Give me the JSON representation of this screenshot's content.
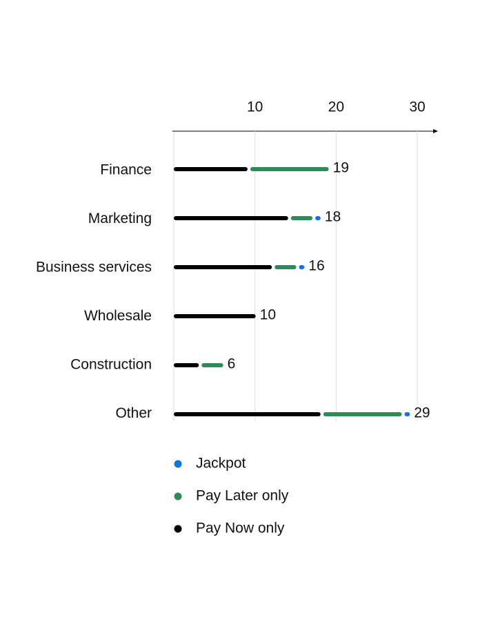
{
  "chart_data": {
    "type": "stacked_bar_horizontal",
    "categories": [
      "Finance",
      "Marketing",
      "Business services",
      "Wholesale",
      "Construction",
      "Other"
    ],
    "series": [
      {
        "name": "Pay Now only",
        "color": "#000000",
        "values": [
          9,
          14,
          12,
          10,
          3,
          18
        ]
      },
      {
        "name": "Pay Later only",
        "color": "#2e8b57",
        "values": [
          10,
          3,
          3,
          0,
          3,
          10
        ]
      },
      {
        "name": "Jackpot",
        "color": "#0a74e8",
        "values": [
          0,
          1,
          1,
          0,
          0,
          1
        ]
      }
    ],
    "totals": [
      19,
      18,
      16,
      10,
      6,
      29
    ],
    "xlim": [
      0,
      30
    ],
    "xticks": [
      10,
      20,
      30
    ],
    "grid": true
  }
}
